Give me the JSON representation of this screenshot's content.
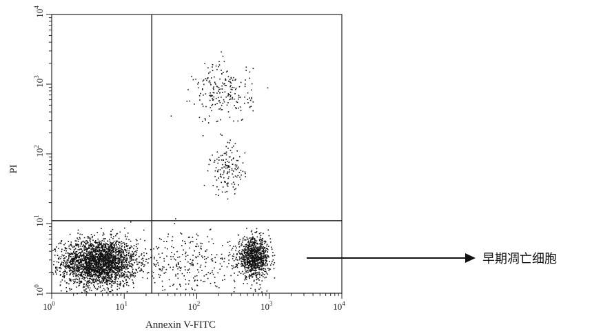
{
  "chart_data": {
    "type": "scatter",
    "title": "",
    "xlabel": "Annexin V-FITC",
    "ylabel": "PI",
    "x_scale": "log",
    "y_scale": "log",
    "xlim": [
      1,
      10000
    ],
    "ylim": [
      1,
      10000
    ],
    "x_ticks": [
      {
        "value": 1,
        "base": "10",
        "exp": "0"
      },
      {
        "value": 10,
        "base": "10",
        "exp": "1"
      },
      {
        "value": 100,
        "base": "10",
        "exp": "2"
      },
      {
        "value": 1000,
        "base": "10",
        "exp": "3"
      },
      {
        "value": 10000,
        "base": "10",
        "exp": "4"
      }
    ],
    "y_ticks": [
      {
        "value": 1,
        "base": "10",
        "exp": "0"
      },
      {
        "value": 10,
        "base": "10",
        "exp": "1"
      },
      {
        "value": 100,
        "base": "10",
        "exp": "2"
      },
      {
        "value": 1000,
        "base": "10",
        "exp": "3"
      },
      {
        "value": 10000,
        "base": "10",
        "exp": "4"
      }
    ],
    "gates": {
      "x": 24,
      "y": 11
    },
    "grid": false,
    "point_color": "#111111",
    "populations": [
      {
        "x": 4.5,
        "y": 2.8,
        "x_spread": 0.26,
        "y_spread": 0.17,
        "count": 2600
      },
      {
        "x": 600,
        "y": 3.3,
        "x_spread": 0.11,
        "y_spread": 0.14,
        "count": 950
      },
      {
        "x": 230,
        "y": 750,
        "x_spread": 0.2,
        "y_spread": 0.22,
        "count": 210
      },
      {
        "x": 260,
        "y": 60,
        "x_spread": 0.12,
        "y_spread": 0.18,
        "count": 140
      },
      {
        "x": 80,
        "y": 2.5,
        "x_spread": 0.35,
        "y_spread": 0.25,
        "count": 280
      }
    ],
    "annotation": {
      "text": "早期凋亡细胞"
    }
  }
}
